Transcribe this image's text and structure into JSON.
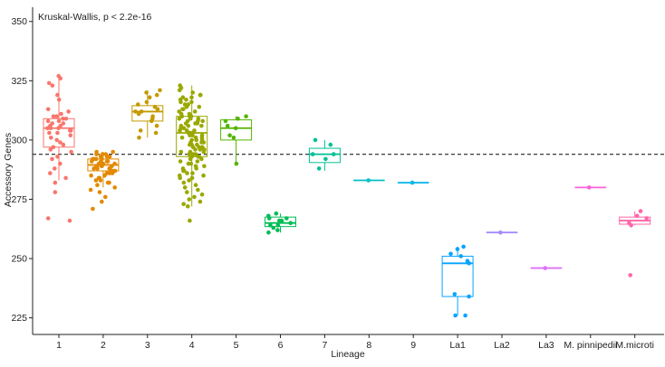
{
  "chart_data": {
    "type": "box",
    "annotation": "Kruskal-Wallis, p < 2.2e-16",
    "xlabel": "Lineage",
    "ylabel": "Accessory Genes",
    "ylim": [
      218,
      356
    ],
    "yticks": [
      225,
      250,
      275,
      300,
      325,
      350
    ],
    "reference_line": 294,
    "grid": false,
    "categories": [
      "1",
      "2",
      "3",
      "4",
      "5",
      "6",
      "7",
      "8",
      "9",
      "La1",
      "La2",
      "La3",
      "M. pinnipedii",
      "M.microti"
    ],
    "colors": [
      "#F8766D",
      "#E38900",
      "#C49A00",
      "#99A800",
      "#53B400",
      "#00BC56",
      "#00C094",
      "#00BFC4",
      "#00B6EB",
      "#06A4FF",
      "#A58AFF",
      "#DF70F8",
      "#FB61D7",
      "#FF66A8"
    ],
    "boxes": [
      {
        "q1": 297,
        "median": 305,
        "q3": 309,
        "whisker_low": 283,
        "whisker_high": 326
      },
      {
        "q1": 287,
        "median": 289.5,
        "q3": 292,
        "whisker_low": 280,
        "whisker_high": 295
      },
      {
        "q1": 308,
        "median": 312,
        "q3": 314.5,
        "whisker_low": 301,
        "whisker_high": 321
      },
      {
        "q1": 293,
        "median": 303,
        "q3": 310,
        "whisker_low": 272,
        "whisker_high": 323
      },
      {
        "q1": 300,
        "median": 305,
        "q3": 308.5,
        "whisker_low": 290,
        "whisker_high": 310
      },
      {
        "q1": 263.5,
        "median": 265,
        "q3": 267.5,
        "whisker_low": 261,
        "whisker_high": 269
      },
      {
        "q1": 290.5,
        "median": 294,
        "q3": 296.5,
        "whisker_low": 287,
        "whisker_high": 300
      },
      {
        "q1": 283,
        "median": 283,
        "q3": 283,
        "whisker_low": 283,
        "whisker_high": 283
      },
      {
        "q1": 282,
        "median": 282,
        "q3": 282,
        "whisker_low": 282,
        "whisker_high": 282
      },
      {
        "q1": 234,
        "median": 248,
        "q3": 251,
        "whisker_low": 226,
        "whisker_high": 255
      },
      {
        "q1": 261,
        "median": 261,
        "q3": 261,
        "whisker_low": 261,
        "whisker_high": 261
      },
      {
        "q1": 246,
        "median": 246,
        "q3": 246,
        "whisker_low": 246,
        "whisker_high": 246
      },
      {
        "q1": 280,
        "median": 280,
        "q3": 280,
        "whisker_low": 280,
        "whisker_high": 280
      },
      {
        "q1": 264.5,
        "median": 266,
        "q3": 267.5,
        "whisker_low": 264,
        "whisker_high": 270
      }
    ],
    "points": [
      [
        327,
        326,
        324,
        323,
        319,
        317,
        313,
        312,
        311,
        310,
        310,
        309,
        309,
        308,
        308,
        307,
        307,
        306,
        306,
        305,
        305,
        305,
        304,
        304,
        303,
        303,
        302,
        301,
        300,
        299,
        298,
        297,
        296,
        295,
        293,
        292,
        290,
        288,
        286,
        284,
        282,
        278,
        267,
        266
      ],
      [
        295,
        295,
        294,
        294,
        294,
        293,
        293,
        293,
        292,
        292,
        292,
        292,
        291,
        291,
        291,
        291,
        290,
        290,
        290,
        290,
        290,
        289,
        289,
        289,
        289,
        289,
        288,
        288,
        288,
        288,
        287,
        287,
        287,
        286,
        286,
        286,
        285,
        285,
        284,
        284,
        283,
        283,
        282,
        282,
        281,
        280,
        279,
        278,
        276,
        274,
        271
      ],
      [
        321,
        320,
        319,
        318,
        316,
        315,
        314,
        313,
        312,
        312,
        311,
        310,
        309,
        308,
        306,
        304,
        303,
        301
      ],
      [
        323,
        322,
        321,
        320,
        319,
        319,
        318,
        318,
        317,
        317,
        316,
        316,
        315,
        315,
        314,
        314,
        313,
        313,
        312,
        312,
        311,
        311,
        310,
        310,
        310,
        309,
        309,
        309,
        308,
        308,
        308,
        307,
        307,
        307,
        306,
        306,
        306,
        305,
        305,
        305,
        304,
        304,
        304,
        303,
        303,
        303,
        302,
        302,
        302,
        301,
        301,
        301,
        300,
        300,
        300,
        299,
        299,
        299,
        298,
        298,
        298,
        297,
        297,
        297,
        296,
        296,
        296,
        295,
        295,
        295,
        294,
        294,
        294,
        293,
        293,
        293,
        292,
        292,
        291,
        291,
        290,
        290,
        289,
        289,
        288,
        288,
        287,
        287,
        286,
        286,
        285,
        285,
        284,
        284,
        283,
        282,
        281,
        280,
        279,
        278,
        277,
        276,
        275,
        274,
        273,
        272,
        266
      ],
      [
        310,
        309,
        308,
        306,
        305,
        302,
        301,
        290
      ],
      [
        269,
        268,
        267,
        267,
        266,
        266,
        265,
        264,
        264,
        263,
        262,
        261
      ],
      [
        300,
        298,
        294,
        294,
        292,
        288
      ],
      [
        283
      ],
      [
        282
      ],
      [
        255,
        254,
        252,
        251,
        249,
        248,
        235,
        234,
        226,
        226
      ],
      [
        261
      ],
      [
        246
      ],
      [
        280
      ],
      [
        270,
        268,
        267,
        265,
        264,
        243
      ]
    ]
  }
}
